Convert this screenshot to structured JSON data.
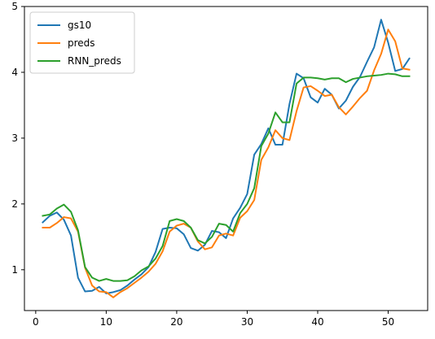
{
  "chart_data": {
    "type": "line",
    "title": "",
    "xlabel": "",
    "ylabel": "",
    "xlim": [
      -1.6,
      55.6
    ],
    "ylim": [
      0.38,
      5.0
    ],
    "xticks": [
      0,
      10,
      20,
      30,
      40,
      50
    ],
    "yticks": [
      1,
      2,
      3,
      4,
      5
    ],
    "grid": false,
    "legend_position": "top-left",
    "x": [
      1,
      2,
      3,
      4,
      5,
      6,
      7,
      8,
      9,
      10,
      11,
      12,
      13,
      14,
      15,
      16,
      17,
      18,
      19,
      20,
      21,
      22,
      23,
      24,
      25,
      26,
      27,
      28,
      29,
      30,
      31,
      32,
      33,
      34,
      35,
      36,
      37,
      38,
      39,
      40,
      41,
      42,
      43,
      44,
      45,
      46,
      47,
      48,
      49,
      50,
      51,
      52,
      53
    ],
    "series": [
      {
        "name": "gs10",
        "color": "#1f77b4",
        "values": [
          1.72,
          1.82,
          1.87,
          1.76,
          1.52,
          0.88,
          0.67,
          0.68,
          0.74,
          0.64,
          0.66,
          0.69,
          0.76,
          0.85,
          0.93,
          1.04,
          1.27,
          1.62,
          1.64,
          1.63,
          1.54,
          1.33,
          1.29,
          1.38,
          1.59,
          1.57,
          1.48,
          1.78,
          1.94,
          2.15,
          2.75,
          2.91,
          3.15,
          2.9,
          2.9,
          3.52,
          3.98,
          3.91,
          3.62,
          3.54,
          3.75,
          3.66,
          3.45,
          3.57,
          3.78,
          3.93,
          4.16,
          4.38,
          4.8,
          4.45,
          4.02,
          4.05,
          4.21
        ]
      },
      {
        "name": "preds",
        "color": "#ff7f0e",
        "values": [
          1.64,
          1.64,
          1.71,
          1.8,
          1.78,
          1.58,
          1.03,
          0.76,
          0.67,
          0.66,
          0.58,
          0.66,
          0.72,
          0.8,
          0.88,
          0.97,
          1.09,
          1.28,
          1.58,
          1.67,
          1.7,
          1.64,
          1.43,
          1.31,
          1.34,
          1.52,
          1.55,
          1.52,
          1.79,
          1.89,
          2.06,
          2.67,
          2.86,
          3.12,
          3.0,
          2.97,
          3.41,
          3.77,
          3.79,
          3.72,
          3.64,
          3.66,
          3.47,
          3.36,
          3.48,
          3.61,
          3.72,
          4.03,
          4.28,
          4.65,
          4.47,
          4.06,
          4.04
        ]
      },
      {
        "name": "RNN_preds",
        "color": "#2ca02c",
        "values": [
          1.82,
          1.84,
          1.93,
          1.99,
          1.88,
          1.6,
          1.04,
          0.88,
          0.83,
          0.86,
          0.83,
          0.83,
          0.84,
          0.9,
          0.99,
          1.05,
          1.17,
          1.36,
          1.74,
          1.77,
          1.74,
          1.64,
          1.45,
          1.4,
          1.5,
          1.7,
          1.68,
          1.58,
          1.86,
          2.0,
          2.24,
          2.88,
          3.07,
          3.39,
          3.24,
          3.24,
          3.83,
          3.92,
          3.92,
          3.91,
          3.89,
          3.91,
          3.91,
          3.85,
          3.9,
          3.92,
          3.94,
          3.95,
          3.96,
          3.98,
          3.97,
          3.94,
          3.94
        ]
      }
    ]
  }
}
